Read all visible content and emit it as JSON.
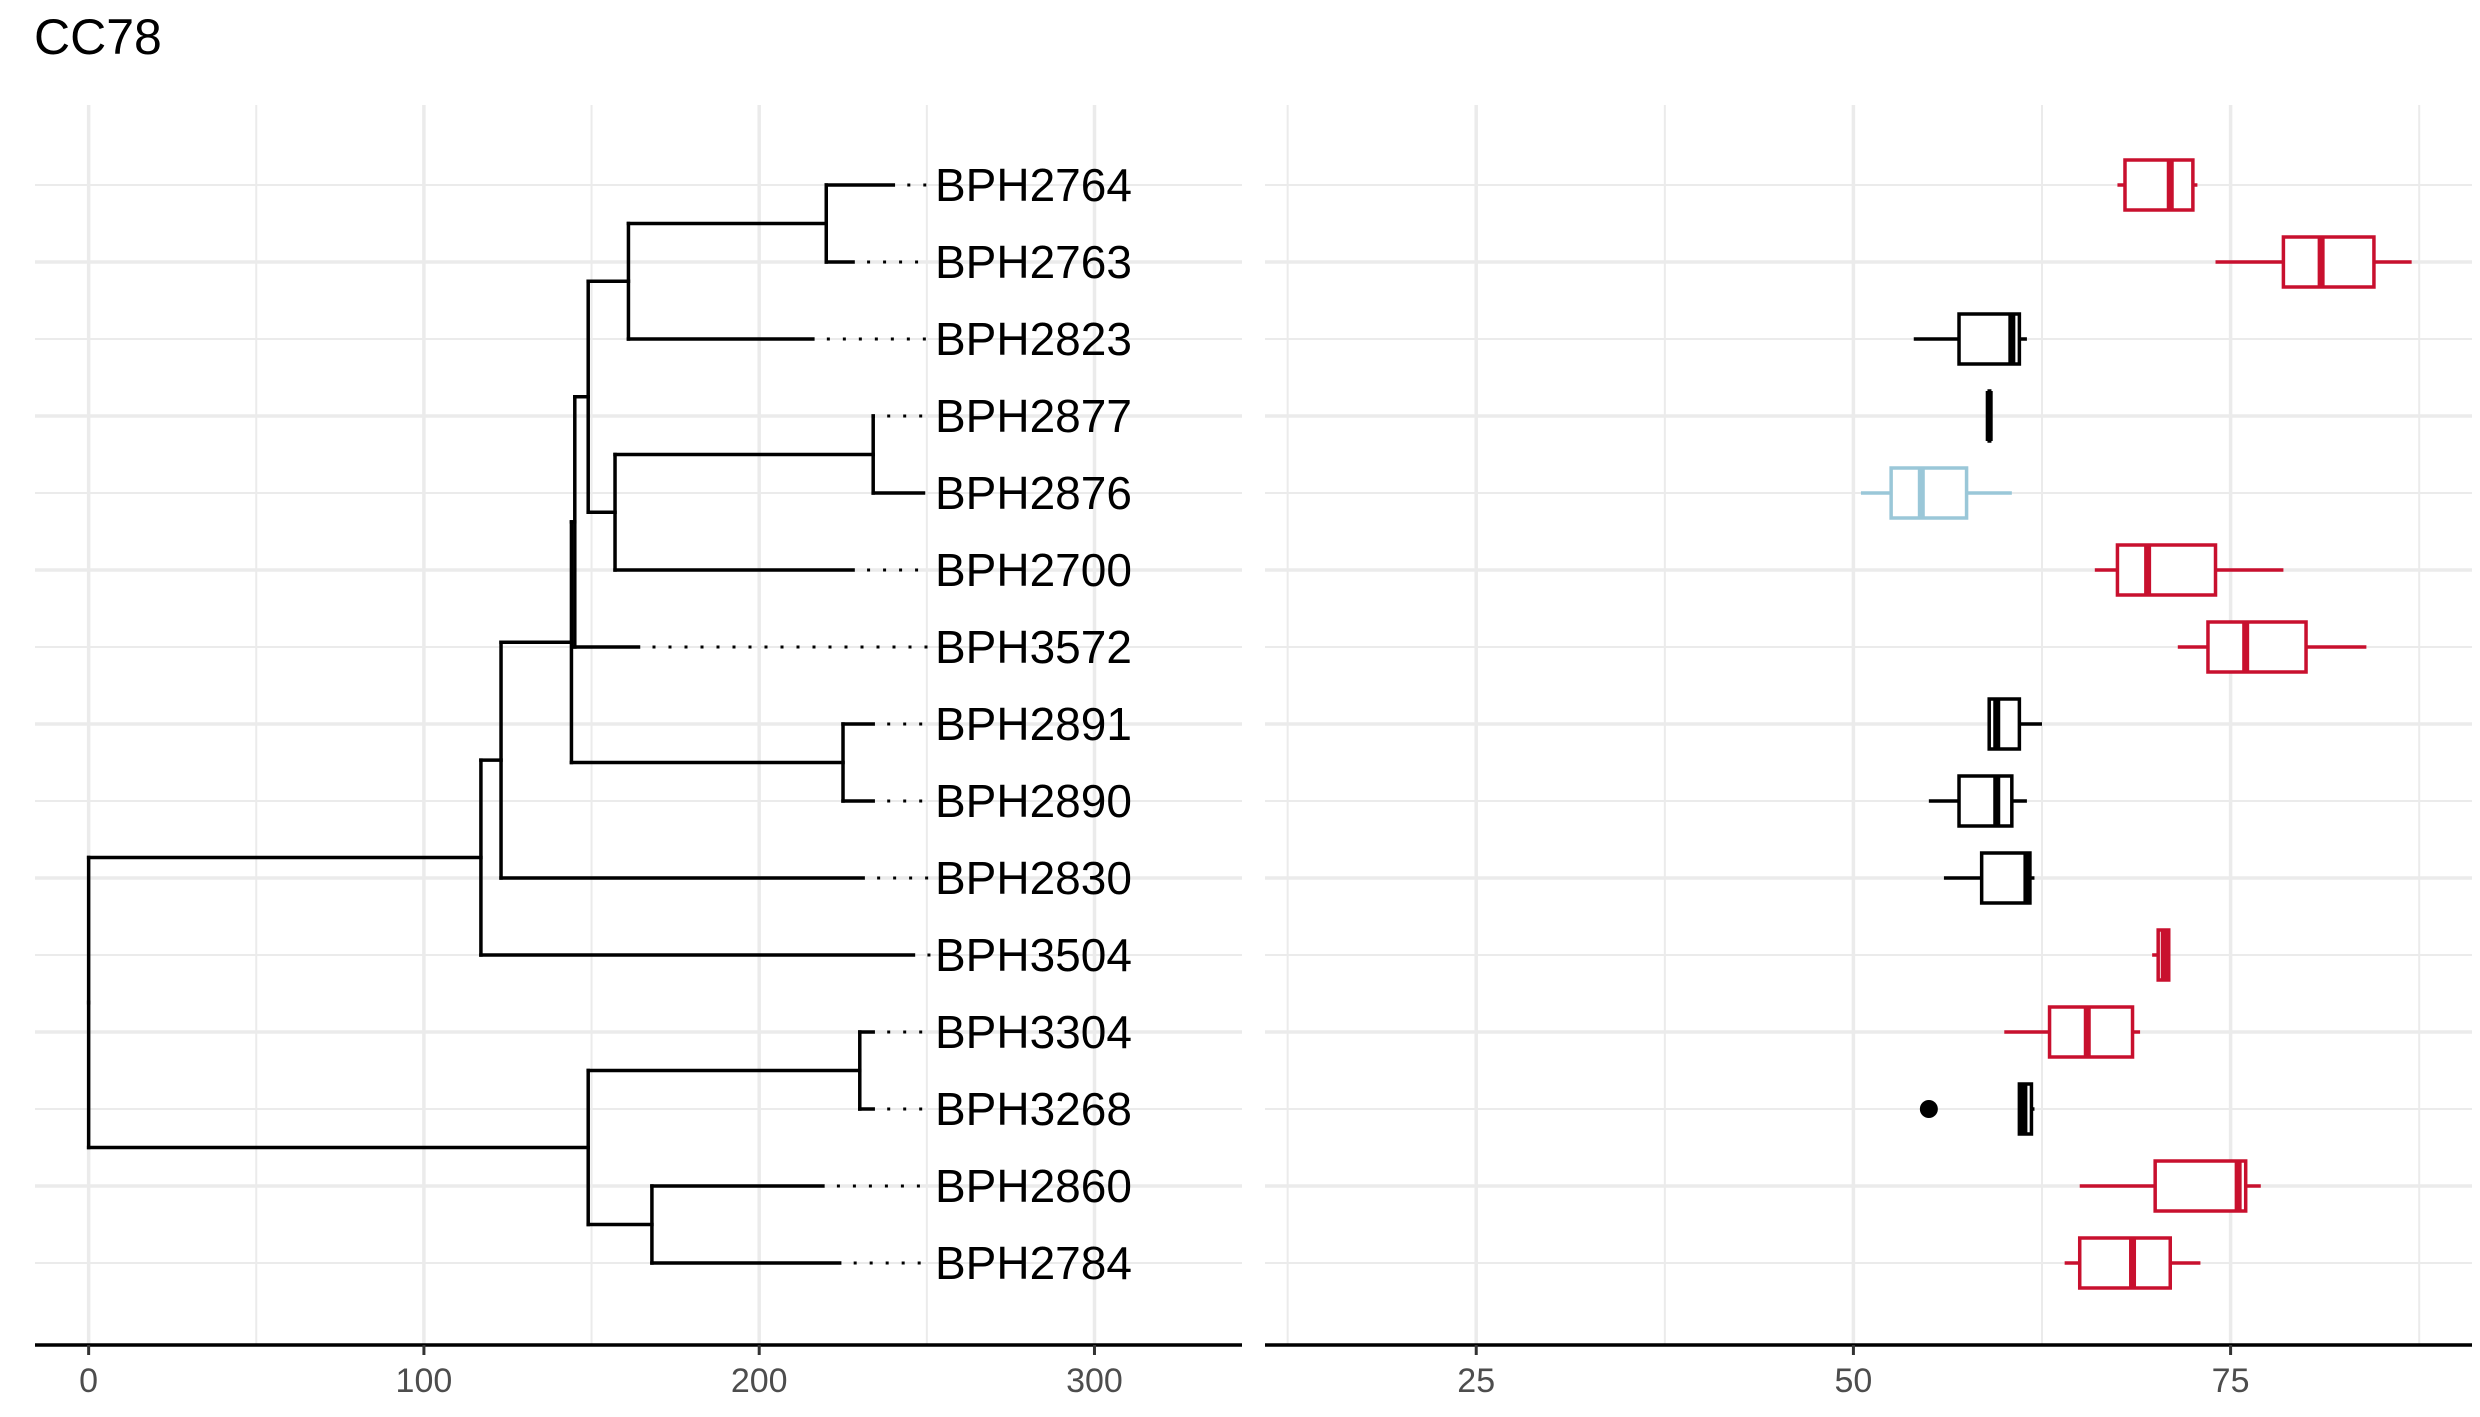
{
  "title": "CC78",
  "chart_data": [
    {
      "type": "dendrogram",
      "xlim": [
        -16,
        344
      ],
      "xticks": [
        0,
        100,
        200,
        300
      ],
      "tips": [
        "BPH2764",
        "BPH2763",
        "BPH2823",
        "BPH2877",
        "BPH2876",
        "BPH2700",
        "BPH3572",
        "BPH2891",
        "BPH2890",
        "BPH2830",
        "BPH3504",
        "BPH3304",
        "BPH3268",
        "BPH2860",
        "BPH2784"
      ],
      "tip_depth": [
        240,
        228,
        216,
        234,
        249,
        228,
        164,
        234,
        234,
        231,
        246,
        234,
        234,
        219,
        224
      ],
      "nodes": [
        {
          "x": 220,
          "children": [
            "BPH2764",
            "BPH2763"
          ]
        },
        {
          "x": 161,
          "children": [
            "n0",
            "BPH2823"
          ]
        },
        {
          "x": 234,
          "children": [
            "BPH2877",
            "BPH2876"
          ]
        },
        {
          "x": 157,
          "children": [
            "n2",
            "BPH2700"
          ]
        },
        {
          "x": 149,
          "children": [
            "n1",
            "n3"
          ]
        },
        {
          "x": 145,
          "children": [
            "n4",
            "BPH3572"
          ]
        },
        {
          "x": 225,
          "children": [
            "BPH2891",
            "BPH2890"
          ]
        },
        {
          "x": 144,
          "children": [
            "n5",
            "n6"
          ]
        },
        {
          "x": 123,
          "children": [
            "n7",
            "BPH2830"
          ]
        },
        {
          "x": 117,
          "children": [
            "n8",
            "BPH3504"
          ]
        },
        {
          "x": 230,
          "children": [
            "BPH3304",
            "BPH3268"
          ]
        },
        {
          "x": 168,
          "children": [
            "BPH2860",
            "BPH2784"
          ]
        },
        {
          "x": 149,
          "children": [
            "n10",
            "n11"
          ]
        },
        {
          "x": 0,
          "children": [
            "n9",
            "n12"
          ]
        }
      ]
    },
    {
      "type": "boxplot",
      "xlim": [
        11,
        91
      ],
      "xticks": [
        25,
        50,
        75
      ],
      "colors": {
        "red": "#c8102e",
        "black": "#000000",
        "blue": "#9ac7d8"
      },
      "boxes": [
        {
          "tip": "BPH2764",
          "color": "red",
          "min": 67.5,
          "q1": 68,
          "median": 71,
          "q3": 72.5,
          "max": 72.8
        },
        {
          "tip": "BPH2763",
          "color": "red",
          "min": 74,
          "q1": 78.5,
          "median": 81,
          "q3": 84.5,
          "max": 87
        },
        {
          "tip": "BPH2823",
          "color": "black",
          "min": 54,
          "q1": 57,
          "median": 60.5,
          "q3": 61,
          "max": 61.5
        },
        {
          "tip": "BPH2877",
          "color": "black",
          "min": 59,
          "q1": 59,
          "median": 59,
          "q3": 59,
          "max": 59
        },
        {
          "tip": "BPH2876",
          "color": "blue",
          "min": 50.5,
          "q1": 52.5,
          "median": 54.5,
          "q3": 57.5,
          "max": 60.5
        },
        {
          "tip": "BPH2700",
          "color": "red",
          "min": 66,
          "q1": 67.5,
          "median": 69.5,
          "q3": 74,
          "max": 78.5
        },
        {
          "tip": "BPH3572",
          "color": "red",
          "min": 71.5,
          "q1": 73.5,
          "median": 76,
          "q3": 80,
          "max": 84
        },
        {
          "tip": "BPH2891",
          "color": "black",
          "min": 59,
          "q1": 59,
          "median": 59.5,
          "q3": 61,
          "max": 62.5
        },
        {
          "tip": "BPH2890",
          "color": "black",
          "min": 55,
          "q1": 57,
          "median": 59.5,
          "q3": 60.5,
          "max": 61.5
        },
        {
          "tip": "BPH2830",
          "color": "black",
          "min": 56,
          "q1": 58.5,
          "median": 61.5,
          "q3": 61.7,
          "max": 62
        },
        {
          "tip": "BPH3504",
          "color": "red",
          "min": 69.8,
          "q1": 70.2,
          "median": 70.6,
          "q3": 70.9,
          "max": 71
        },
        {
          "tip": "BPH3304",
          "color": "red",
          "min": 60,
          "q1": 63,
          "median": 65.5,
          "q3": 68.5,
          "max": 69
        },
        {
          "tip": "BPH3268",
          "color": "black",
          "min": 61,
          "q1": 61,
          "median": 61.3,
          "q3": 61.8,
          "max": 62,
          "outliers": [
            55
          ]
        },
        {
          "tip": "BPH2860",
          "color": "red",
          "min": 65,
          "q1": 70,
          "median": 75.5,
          "q3": 76,
          "max": 77
        },
        {
          "tip": "BPH2784",
          "color": "red",
          "min": 64,
          "q1": 65,
          "median": 68.5,
          "q3": 71,
          "max": 73
        }
      ]
    }
  ]
}
